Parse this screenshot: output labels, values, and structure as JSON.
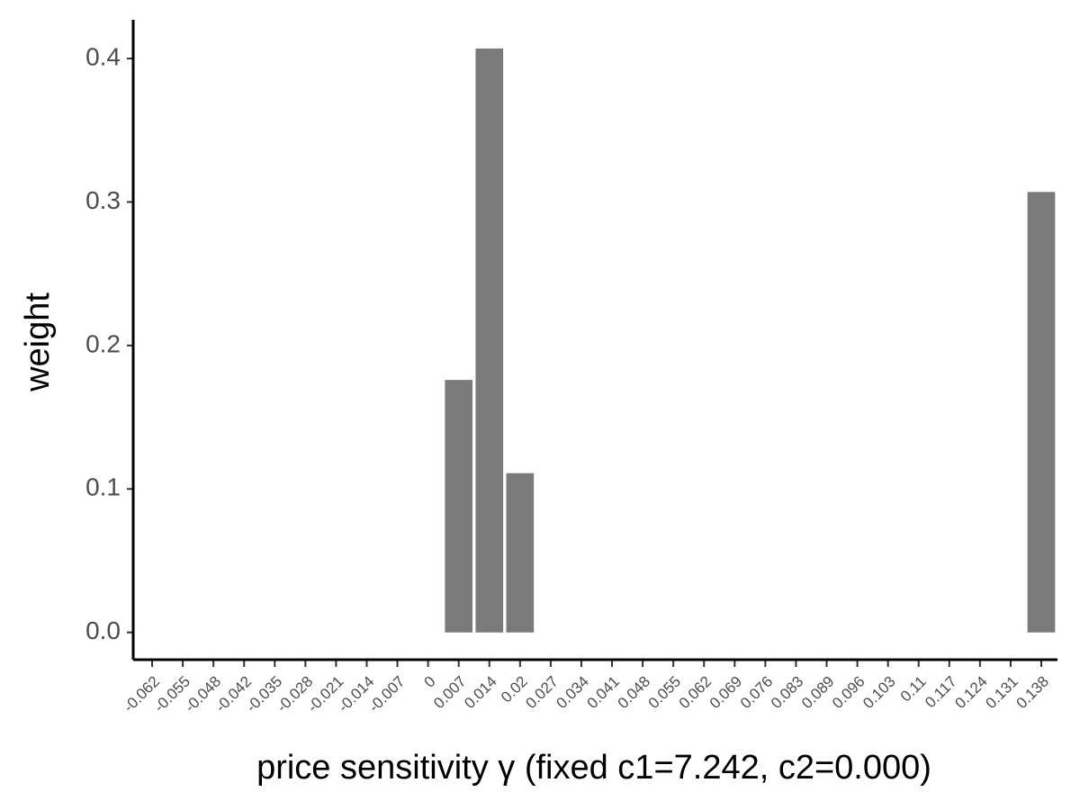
{
  "chart_data": {
    "type": "bar",
    "x_label": "price sensitivity γ (fixed c1=7.242, c2=0.000)",
    "y_label": "weight",
    "categories": [
      "-0.062",
      "-0.055",
      "-0.048",
      "-0.042",
      "-0.035",
      "-0.028",
      "-0.021",
      "-0.014",
      "-0.007",
      "0",
      "0.007",
      "0.014",
      "0.02",
      "0.027",
      "0.034",
      "0.041",
      "0.048",
      "0.055",
      "0.062",
      "0.069",
      "0.076",
      "0.083",
      "0.089",
      "0.096",
      "0.103",
      "0.11",
      "0.117",
      "0.124",
      "0.131",
      "0.138"
    ],
    "values": [
      0,
      0,
      0,
      0,
      0,
      0,
      0,
      0,
      0,
      0,
      0.176,
      0.407,
      0.111,
      0,
      0,
      0,
      0,
      0,
      0,
      0,
      0,
      0,
      0,
      0,
      0,
      0,
      0,
      0,
      0,
      0.307
    ],
    "color": "#7a7a7a",
    "ylim": [
      -0.019,
      0.427
    ],
    "yticks": [
      {
        "value": 0,
        "label": "0.0"
      },
      0.1,
      0.2,
      0.3,
      0.4
    ],
    "grid": false
  }
}
